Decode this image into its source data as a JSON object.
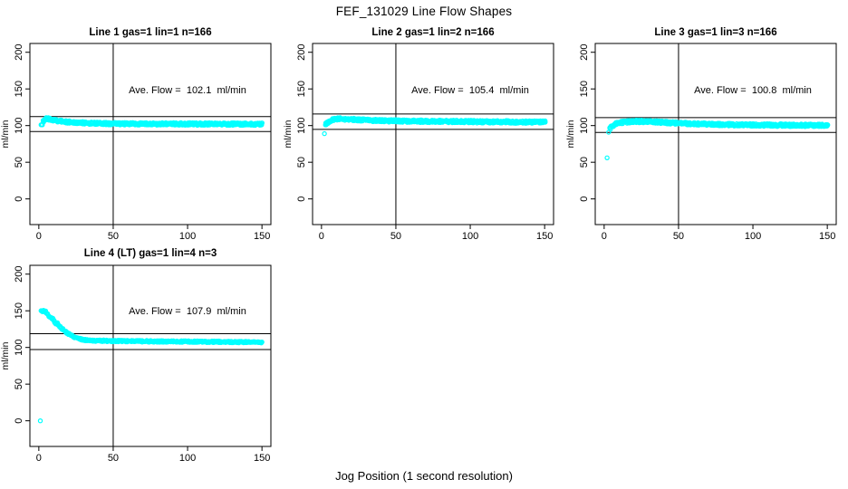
{
  "page": {
    "title": "FEF_131029  Line Flow Shapes",
    "xlabel": "Jog Position (1 second resolution)",
    "ylabel": "ml/min",
    "colors": {
      "points": "#00FFFF",
      "axis": "#000000",
      "background": "#FFFFFF"
    }
  },
  "chart_data": [
    {
      "type": "scatter",
      "title": "Line 1 gas=1 lin=1 n=166",
      "annotation": "Ave. Flow =  102.1  ml/min",
      "ave_flow": 102.1,
      "n": 166,
      "xlim": [
        -6,
        156
      ],
      "ylim": [
        -35,
        212
      ],
      "x_ticks": [
        0,
        50,
        100,
        150
      ],
      "y_ticks": [
        0,
        50,
        100,
        150,
        200
      ],
      "vline_x": 50,
      "hlines": [
        112.3,
        91.9
      ],
      "profile": [
        [
          2,
          101
        ],
        [
          3,
          106
        ],
        [
          4,
          108.5
        ],
        [
          5,
          109.5
        ],
        [
          7,
          109
        ],
        [
          10,
          107.5
        ],
        [
          14,
          106
        ],
        [
          20,
          104.8
        ],
        [
          28,
          103.8
        ],
        [
          40,
          103
        ],
        [
          55,
          102.6
        ],
        [
          80,
          102.3
        ],
        [
          110,
          102.2
        ],
        [
          150,
          102
        ]
      ],
      "outliers": [],
      "band_halfwidth": 1.7,
      "points_per_x": 4,
      "seed": 11
    },
    {
      "type": "scatter",
      "title": "Line 2 gas=1 lin=2 n=166",
      "annotation": "Ave. Flow =  105.4  ml/min",
      "ave_flow": 105.4,
      "n": 166,
      "xlim": [
        -6,
        156
      ],
      "ylim": [
        -35,
        212
      ],
      "x_ticks": [
        0,
        50,
        100,
        150
      ],
      "y_ticks": [
        0,
        50,
        100,
        150,
        200
      ],
      "vline_x": 50,
      "hlines": [
        115.9,
        94.9
      ],
      "profile": [
        [
          3,
          102
        ],
        [
          4,
          104.5
        ],
        [
          6,
          107
        ],
        [
          8,
          108.5
        ],
        [
          11,
          109.3
        ],
        [
          15,
          109
        ],
        [
          22,
          108.3
        ],
        [
          32,
          107.3
        ],
        [
          45,
          106.5
        ],
        [
          60,
          106
        ],
        [
          85,
          105.6
        ],
        [
          115,
          105.2
        ],
        [
          150,
          104.8
        ]
      ],
      "outliers": [
        [
          2,
          89
        ]
      ],
      "band_halfwidth": 1.8,
      "points_per_x": 4,
      "seed": 22
    },
    {
      "type": "scatter",
      "title": "Line 3 gas=1 lin=3 n=166",
      "annotation": "Ave. Flow =  100.8  ml/min",
      "ave_flow": 100.8,
      "n": 166,
      "xlim": [
        -6,
        156
      ],
      "ylim": [
        -35,
        212
      ],
      "x_ticks": [
        0,
        50,
        100,
        150
      ],
      "y_ticks": [
        0,
        50,
        100,
        150,
        200
      ],
      "vline_x": 50,
      "hlines": [
        110.9,
        90.7
      ],
      "profile": [
        [
          4,
          96.5
        ],
        [
          6,
          100
        ],
        [
          8,
          102.5
        ],
        [
          11,
          104
        ],
        [
          15,
          105
        ],
        [
          20,
          105.6
        ],
        [
          27,
          105.6
        ],
        [
          35,
          105
        ],
        [
          45,
          103.8
        ],
        [
          58,
          102.6
        ],
        [
          75,
          101.6
        ],
        [
          95,
          101
        ],
        [
          120,
          100.6
        ],
        [
          150,
          100.2
        ]
      ],
      "outliers": [
        [
          2,
          56
        ],
        [
          3,
          91
        ]
      ],
      "band_halfwidth": 1.8,
      "points_per_x": 4,
      "seed": 33
    },
    {
      "type": "scatter",
      "title": "Line 4 (LT) gas=1 lin=4 n=3",
      "annotation": "Ave. Flow =  107.9  ml/min",
      "ave_flow": 107.9,
      "n": 3,
      "xlim": [
        -6,
        156
      ],
      "ylim": [
        -35,
        212
      ],
      "x_ticks": [
        0,
        50,
        100,
        150
      ],
      "y_ticks": [
        0,
        50,
        100,
        150,
        200
      ],
      "vline_x": 50,
      "hlines": [
        118.7,
        97.1
      ],
      "profile": [
        [
          2,
          149.5
        ],
        [
          3,
          150
        ],
        [
          4,
          149
        ],
        [
          5,
          147
        ],
        [
          6,
          145
        ],
        [
          8,
          141
        ],
        [
          10,
          136.5
        ],
        [
          12,
          132.5
        ],
        [
          14,
          128.5
        ],
        [
          16,
          125
        ],
        [
          18,
          121.5
        ],
        [
          20,
          118.5
        ],
        [
          23,
          115
        ],
        [
          26,
          112.5
        ],
        [
          30,
          110.5
        ],
        [
          35,
          109.5
        ],
        [
          42,
          109
        ],
        [
          55,
          108.7
        ],
        [
          75,
          108.3
        ],
        [
          100,
          108
        ],
        [
          125,
          107.6
        ],
        [
          150,
          107
        ]
      ],
      "outliers": [
        [
          1,
          0
        ]
      ],
      "band_halfwidth": 1.1,
      "points_per_x": 3,
      "seed": 44
    }
  ]
}
